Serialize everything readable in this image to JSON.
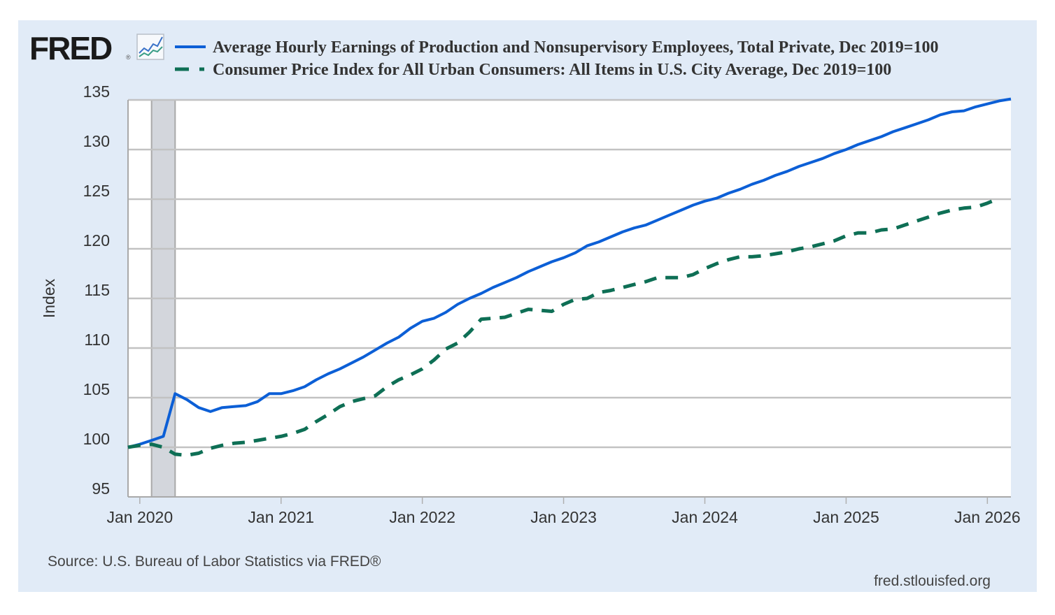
{
  "logo": {
    "text": "FRED",
    "registered": "®",
    "icon": "line-chart-icon"
  },
  "colors": {
    "background": "#e1ebf7",
    "plot_bg": "#ffffff",
    "grid": "#c2c2c2",
    "recession": "#d3d6dc",
    "series1": "#0c5fd6",
    "series2": "#0e6f55"
  },
  "footer": {
    "source": "Source: U.S. Bureau of Labor Statistics via FRED®",
    "site": "fred.stlouisfed.org"
  },
  "chart_data": {
    "type": "line",
    "title": "",
    "xlabel": "",
    "ylabel": "Index",
    "ylim": [
      95,
      135
    ],
    "yticks": [
      "95",
      "100",
      "105",
      "110",
      "115",
      "120",
      "125",
      "130",
      "135"
    ],
    "xticks": [
      "Jan 2020",
      "Jan 2021",
      "Jan 2022",
      "Jan 2023",
      "Jan 2024",
      "Jan 2025",
      "Jan 2026"
    ],
    "x_unit": "months since Dec 2019",
    "xlim_months": [
      0,
      75
    ],
    "grid": true,
    "legend_position": "top",
    "recession_shading": {
      "start_month": 2,
      "end_month": 4,
      "label": "Feb 2020 – Apr 2020"
    },
    "series": [
      {
        "name": "Average Hourly Earnings of Production and Nonsupervisory Employees, Total Private, Dec 2019=100",
        "style": "solid",
        "start": "Dec 2019",
        "values": [
          100.0,
          100.3,
          100.7,
          101.1,
          105.4,
          104.8,
          104.0,
          103.6,
          104.0,
          104.1,
          104.2,
          104.6,
          105.4,
          105.4,
          105.7,
          106.1,
          106.8,
          107.4,
          107.9,
          108.5,
          109.1,
          109.8,
          110.5,
          111.1,
          112.0,
          112.7,
          113.0,
          113.6,
          114.4,
          115.0,
          115.5,
          116.1,
          116.6,
          117.1,
          117.7,
          118.2,
          118.7,
          119.1,
          119.6,
          120.3,
          120.7,
          121.2,
          121.7,
          122.1,
          122.4,
          122.9,
          123.4,
          123.9,
          124.4,
          124.8,
          125.1,
          125.6,
          126.0,
          126.5,
          126.9,
          127.4,
          127.8,
          128.3,
          128.7,
          129.1,
          129.6,
          130.0,
          130.5,
          130.9,
          131.3,
          131.8,
          132.2,
          132.6,
          133.0,
          133.5,
          133.8,
          133.9,
          134.3,
          134.6,
          134.9,
          135.1
        ]
      },
      {
        "name": "Consumer Price Index for All Urban Consumers: All Items in U.S. City Average, Dec 2019=100",
        "style": "dashed",
        "start": "Dec 2019",
        "values": [
          100.0,
          100.2,
          100.3,
          100.0,
          99.3,
          99.2,
          99.4,
          99.9,
          100.2,
          100.4,
          100.5,
          100.7,
          100.9,
          101.1,
          101.4,
          101.8,
          102.6,
          103.3,
          104.1,
          104.6,
          104.9,
          105.2,
          106.1,
          106.8,
          107.3,
          107.9,
          108.8,
          109.9,
          110.5,
          111.6,
          112.9,
          113.0,
          113.1,
          113.5,
          113.9,
          113.8,
          113.7,
          114.4,
          114.9,
          115.0,
          115.6,
          115.8,
          116.1,
          116.4,
          116.7,
          117.1,
          117.1,
          117.1,
          117.4,
          118.0,
          118.5,
          118.9,
          119.2,
          119.2,
          119.3,
          119.5,
          119.7,
          120.0,
          120.2,
          120.5,
          120.8,
          121.3,
          121.6,
          121.6,
          121.9,
          122.0,
          122.4,
          122.8,
          123.2,
          123.6,
          123.9,
          124.1,
          124.2,
          124.6,
          125.1
        ]
      }
    ]
  }
}
